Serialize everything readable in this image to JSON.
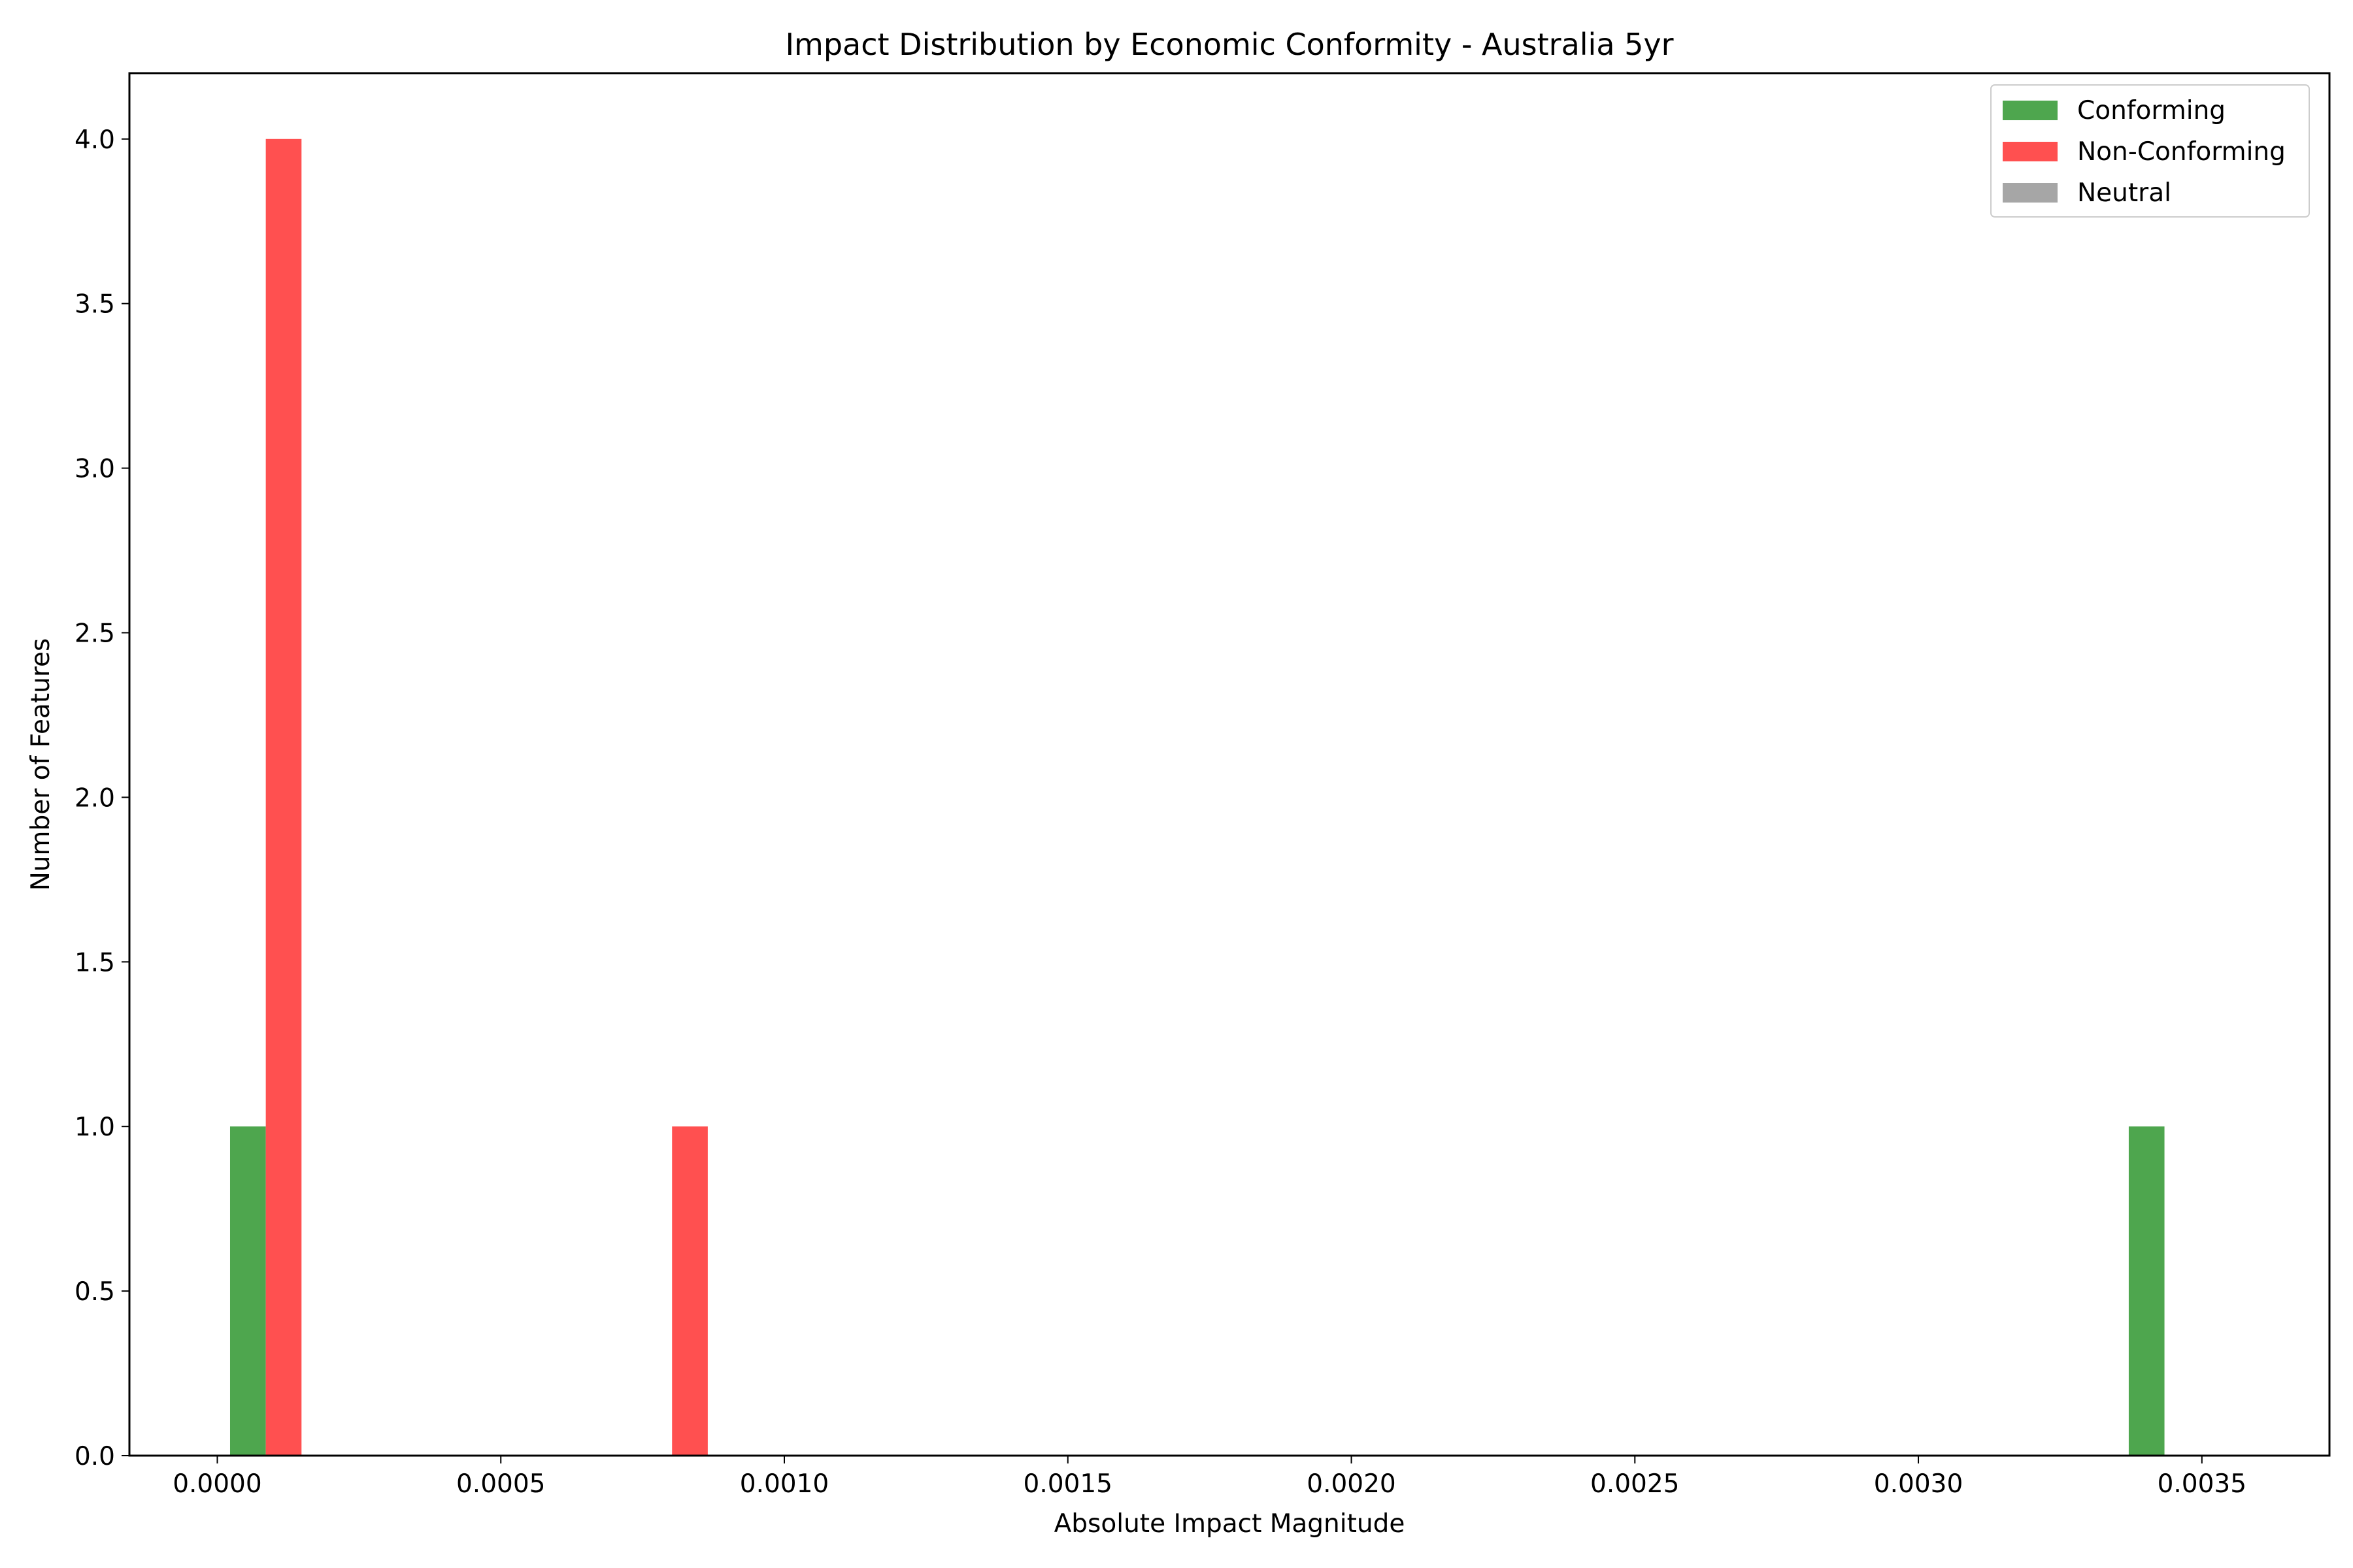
{
  "chart_data": {
    "type": "bar",
    "title": "Impact Distribution by Economic Conformity - Australia 5yr",
    "xlabel": "Absolute Impact Magnitude",
    "ylabel": "Number of Features",
    "xlim": [
      -0.000155,
      0.003725
    ],
    "ylim": [
      0,
      4.2
    ],
    "xticks": [
      "0.0000",
      "0.0005",
      "0.0010",
      "0.0015",
      "0.0020",
      "0.0025",
      "0.0030",
      "0.0035"
    ],
    "xtick_values": [
      0,
      0.0005,
      0.001,
      0.0015,
      0.002,
      0.0025,
      0.003,
      0.0035
    ],
    "yticks": [
      "0.0",
      "0.5",
      "1.0",
      "1.5",
      "2.0",
      "2.5",
      "3.0",
      "3.5",
      "4.0"
    ],
    "ytick_values": [
      0,
      0.5,
      1,
      1.5,
      2,
      2.5,
      3,
      3.5,
      4
    ],
    "grid": false,
    "legend_position": "top-right",
    "series": [
      {
        "name": "Conforming",
        "color": "#4ea64e",
        "bars": [
          {
            "x_start": 2.25e-05,
            "x_end": 8.55e-05,
            "value": 1
          },
          {
            "x_start": 0.003371,
            "x_end": 0.003434,
            "value": 1
          }
        ]
      },
      {
        "name": "Non-Conforming",
        "color": "#ff5050",
        "bars": [
          {
            "x_start": 8.55e-05,
            "x_end": 0.0001485,
            "value": 4
          },
          {
            "x_start": 0.000802,
            "x_end": 0.000865,
            "value": 1
          }
        ]
      },
      {
        "name": "Neutral",
        "color": "#a6a6a6",
        "bars": []
      }
    ]
  }
}
